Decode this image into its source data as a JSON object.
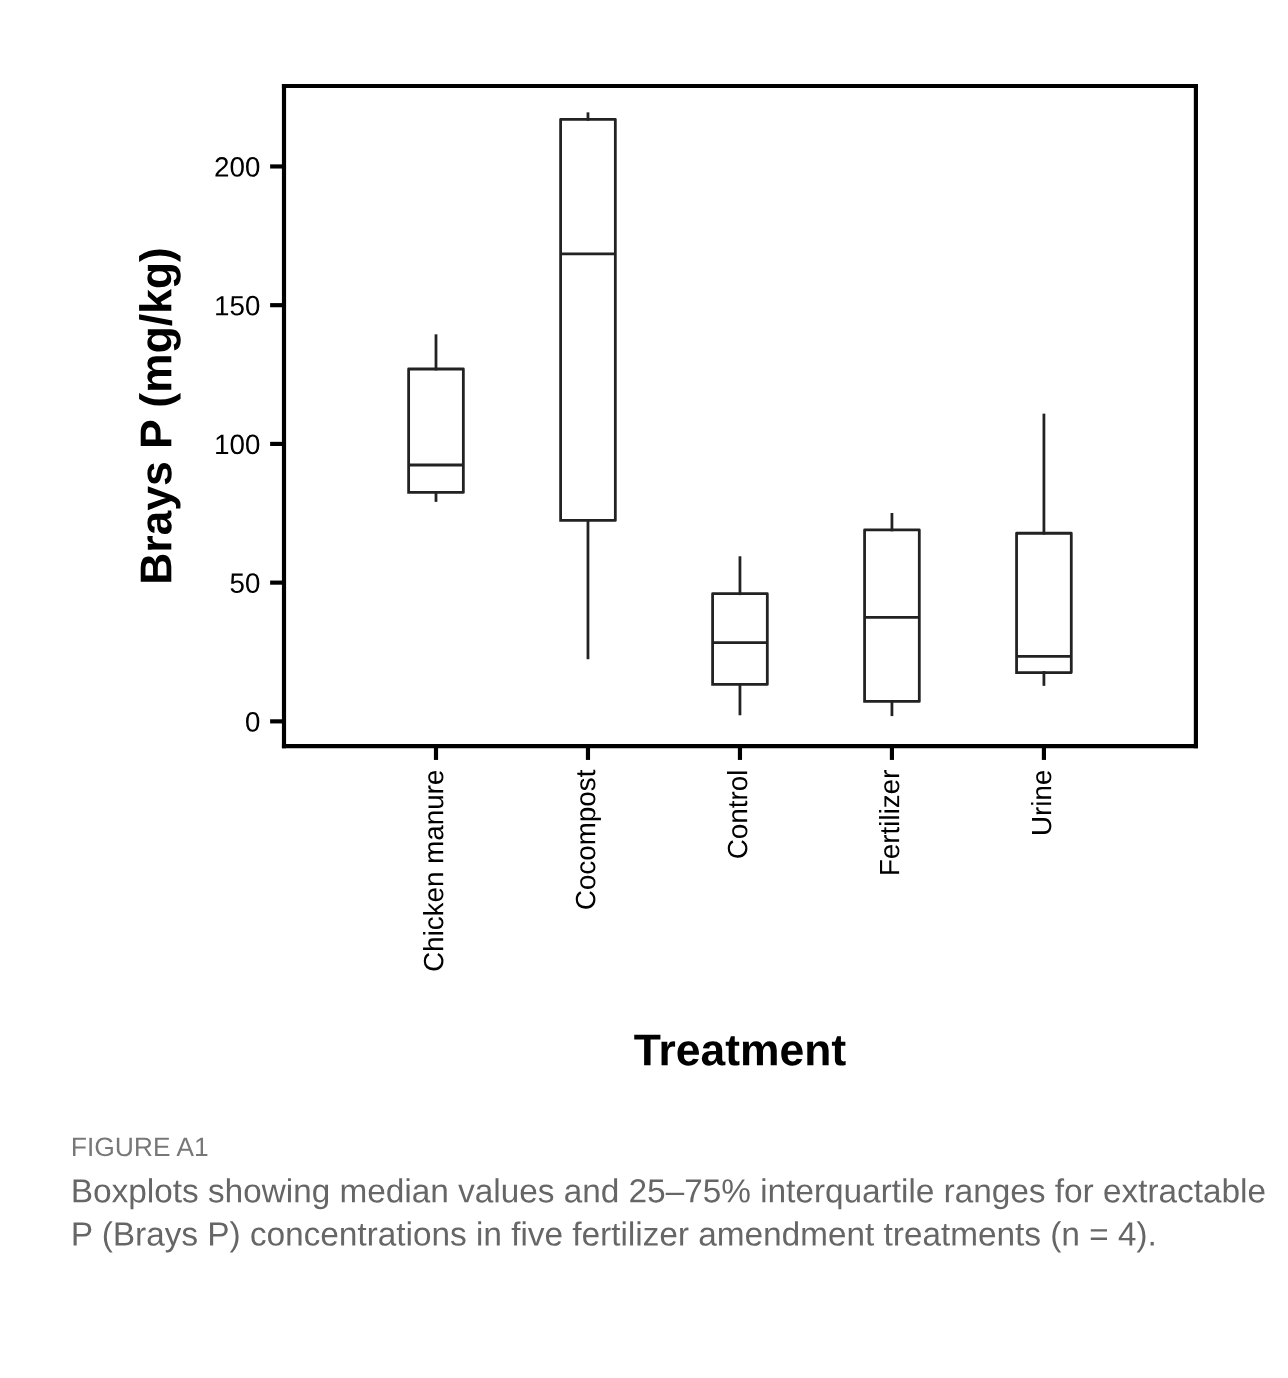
{
  "chart_data": {
    "type": "box",
    "xlabel": "Treatment",
    "ylabel": "Brays P (mg/kg)",
    "categories": [
      "Chicken manure",
      "Cocompost",
      "Control",
      "Fertilizer",
      "Urine"
    ],
    "boxes": [
      {
        "low": 79.6,
        "q1": 82.5,
        "median": 92.4,
        "q3": 127,
        "high": 139
      },
      {
        "low": 22.9,
        "q1": 72.4,
        "median": 168.5,
        "q3": 217,
        "high": 219
      },
      {
        "low": 2.7,
        "q1": 13.3,
        "median": 28.4,
        "q3": 46,
        "high": 59
      },
      {
        "low": 2.4,
        "q1": 7.2,
        "median": 37.5,
        "q3": 69,
        "high": 74.6
      },
      {
        "low": 13.3,
        "q1": 17.6,
        "median": 23.4,
        "q3": 67.8,
        "high": 110.4
      }
    ],
    "ylim": [
      -8.9,
      229
    ],
    "yticks": [
      0,
      50,
      100,
      150,
      200
    ],
    "grid": false,
    "annotations": [
      "FIGURE A1",
      "Boxplots showing median values and 25–75% interquartile ranges for extractable P (Brays P) concentrations in five fertilizer amendment treatments (n = 4)."
    ]
  }
}
